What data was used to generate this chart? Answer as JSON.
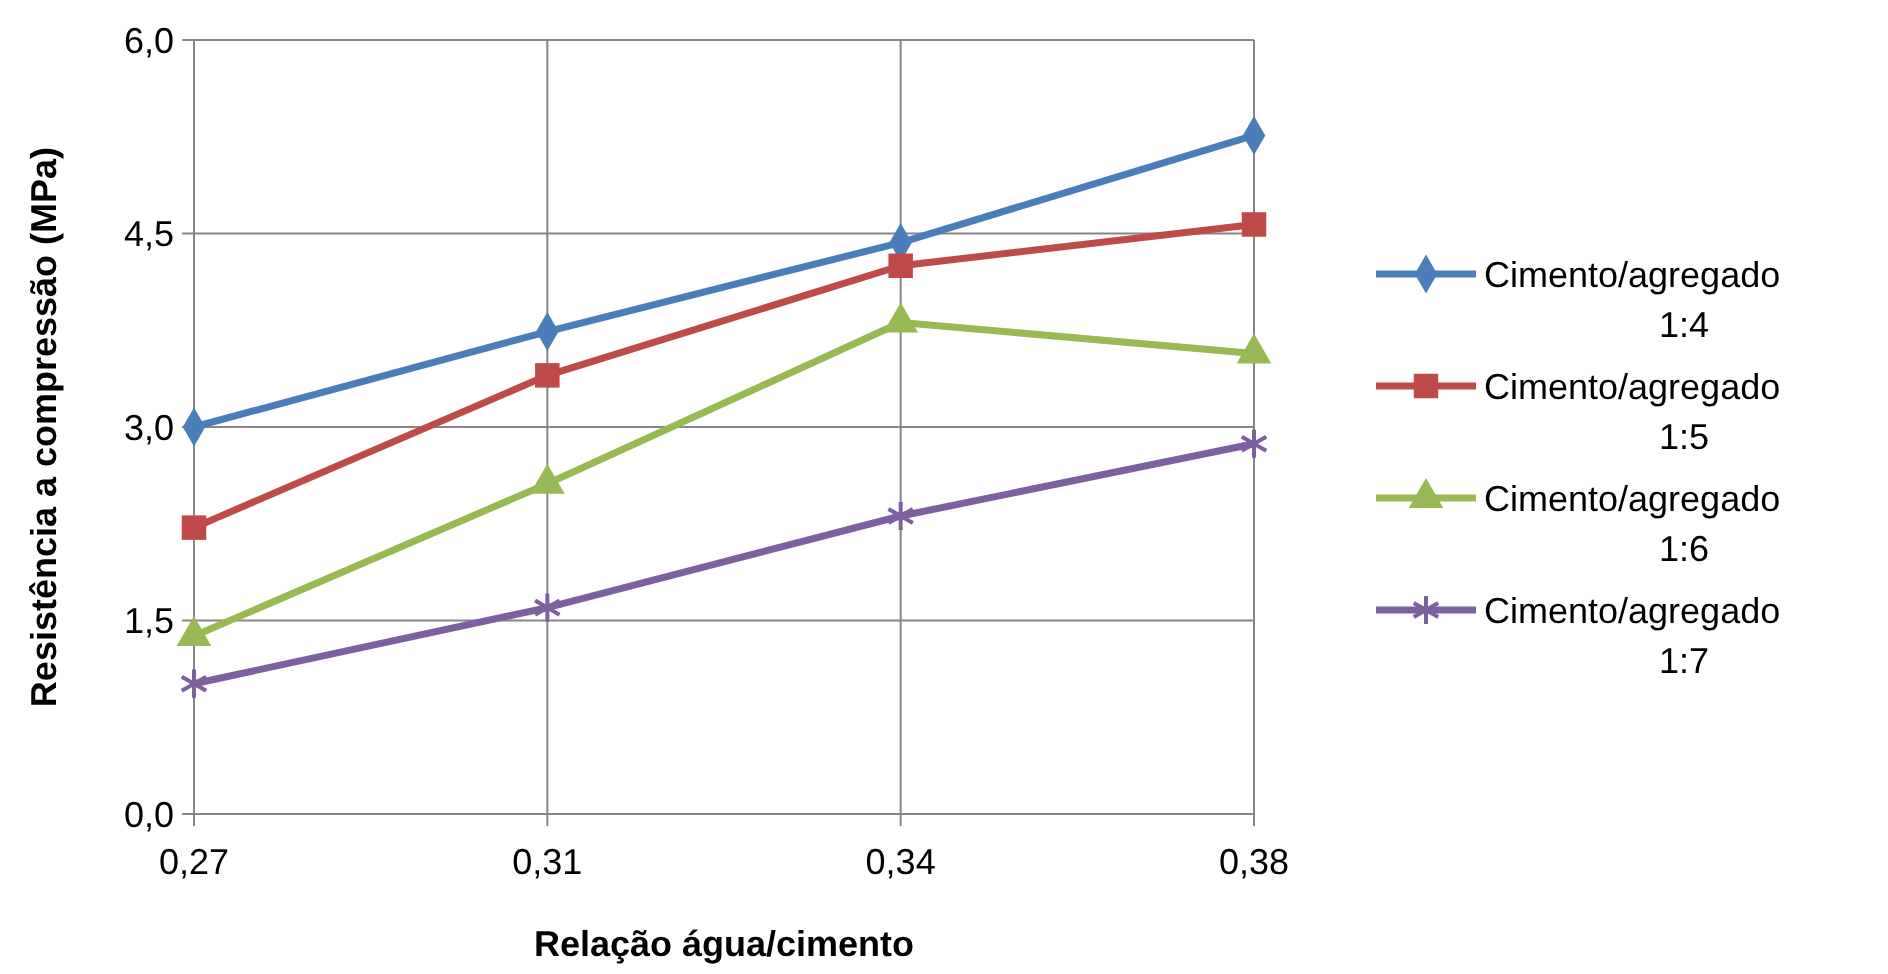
{
  "chart_data": {
    "type": "line",
    "xlabel": "Relação água/cimento",
    "ylabel": "Resistência a compressão (MPa)",
    "categories": [
      "0,27",
      "0,31",
      "0,34",
      "0,38"
    ],
    "ylim": [
      0,
      6
    ],
    "yticks": [
      {
        "value": 0,
        "label": "0,0"
      },
      {
        "value": 1.5,
        "label": "1,5"
      },
      {
        "value": 3,
        "label": "3,0"
      },
      {
        "value": 4.5,
        "label": "4,5"
      },
      {
        "value": 6,
        "label": "6,0"
      }
    ],
    "grid": true,
    "legend": "right",
    "line_style": "solid",
    "series": [
      {
        "name": "Cimento/agregado 1:4",
        "color": "#4a7ebb",
        "marker": "diamond",
        "values": [
          3.0,
          3.74,
          4.43,
          5.26
        ]
      },
      {
        "name": "Cimento/agregado 1:5",
        "color": "#be4b48",
        "marker": "square",
        "values": [
          2.22,
          3.4,
          4.25,
          4.57
        ]
      },
      {
        "name": "Cimento/agregado 1:6",
        "color": "#98b954",
        "marker": "triangle",
        "values": [
          1.38,
          2.56,
          3.81,
          3.57
        ]
      },
      {
        "name": "Cimento/agregado 1:7",
        "color": "#7d60a0",
        "marker": "cross",
        "values": [
          1.01,
          1.6,
          2.31,
          2.87
        ]
      }
    ]
  }
}
